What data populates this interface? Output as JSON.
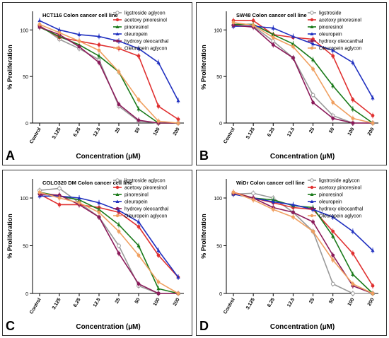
{
  "x_categories": [
    "Control",
    "3.125",
    "6.25",
    "12.5",
    "25",
    "50",
    "100",
    "200"
  ],
  "chart_data": [
    {
      "type": "line",
      "panel_label": "A",
      "title": "HCT116 Colon cancer cell line",
      "xlabel": "Concentration (µM)",
      "ylabel": "% Proliferation",
      "ylim": [
        0,
        120
      ],
      "yticks": [
        0,
        50,
        100
      ],
      "series": [
        {
          "name": "ligstroside aglycon",
          "color": "#999999",
          "marker": "circle-open",
          "values": [
            105,
            90,
            80,
            68,
            18,
            2,
            0,
            0
          ]
        },
        {
          "name": "acetoxy pinoresinol",
          "color": "#e03030",
          "marker": "circle",
          "values": [
            104,
            92,
            88,
            84,
            80,
            72,
            18,
            4
          ]
        },
        {
          "name": "pinoresinol",
          "color": "#1a7a1a",
          "marker": "triangle",
          "values": [
            103,
            93,
            84,
            72,
            55,
            15,
            0,
            0
          ]
        },
        {
          "name": "oleuropein",
          "color": "#2030c0",
          "marker": "triangle",
          "values": [
            110,
            100,
            95,
            93,
            88,
            80,
            65,
            24
          ]
        },
        {
          "name": "hydroxy oleocanthal",
          "color": "#8b1a5a",
          "marker": "circle",
          "values": [
            103,
            95,
            82,
            65,
            20,
            3,
            0,
            0
          ]
        },
        {
          "name": "Oleuropein aglycon",
          "color": "#f0a060",
          "marker": "circle",
          "values": [
            106,
            97,
            88,
            78,
            55,
            25,
            2,
            0
          ]
        }
      ]
    },
    {
      "type": "line",
      "panel_label": "B",
      "title": "SW48 Colon cancer cell line",
      "xlabel": "Concentration (µM)",
      "ylabel": "% Proliferation",
      "ylim": [
        0,
        120
      ],
      "yticks": [
        0,
        50,
        100
      ],
      "series": [
        {
          "name": "ligstroside",
          "color": "#999999",
          "marker": "circle-open",
          "values": [
            105,
            104,
            88,
            70,
            30,
            8,
            0,
            0
          ]
        },
        {
          "name": "acetoxy pinoresinol",
          "color": "#e03030",
          "marker": "circle",
          "values": [
            110,
            110,
            95,
            92,
            90,
            72,
            25,
            8
          ]
        },
        {
          "name": "pinoresinol",
          "color": "#1a7a1a",
          "marker": "triangle",
          "values": [
            106,
            106,
            95,
            85,
            68,
            40,
            15,
            0
          ]
        },
        {
          "name": "oleuropein",
          "color": "#2030c0",
          "marker": "triangle",
          "values": [
            104,
            104,
            102,
            93,
            85,
            78,
            65,
            27
          ]
        },
        {
          "name": "hydroxy oleocanthal",
          "color": "#8b1a5a",
          "marker": "circle",
          "values": [
            105,
            103,
            84,
            70,
            22,
            5,
            0,
            0
          ]
        },
        {
          "name": "Oleuropein aglycon",
          "color": "#f0a060",
          "marker": "circle",
          "values": [
            108,
            105,
            92,
            82,
            58,
            22,
            5,
            0
          ]
        }
      ]
    },
    {
      "type": "line",
      "panel_label": "C",
      "title": "COLO320 DM Colon cancer cell line",
      "xlabel": "Concentration (µM)",
      "ylabel": "% Proliferation",
      "ylim": [
        0,
        120
      ],
      "yticks": [
        0,
        50,
        100
      ],
      "series": [
        {
          "name": "ligstroside aglycon",
          "color": "#999999",
          "marker": "circle-open",
          "values": [
            108,
            110,
            95,
            80,
            50,
            8,
            0,
            0
          ]
        },
        {
          "name": "acetoxy pinoresinol",
          "color": "#e03030",
          "marker": "circle",
          "values": [
            104,
            93,
            93,
            90,
            85,
            70,
            40,
            17
          ]
        },
        {
          "name": "pinoresinol",
          "color": "#1a7a1a",
          "marker": "triangle",
          "values": [
            106,
            102,
            98,
            88,
            72,
            50,
            5,
            0
          ]
        },
        {
          "name": "oleuropein",
          "color": "#2030c0",
          "marker": "triangle",
          "values": [
            102,
            102,
            100,
            95,
            87,
            75,
            45,
            17
          ]
        },
        {
          "name": "hydroxy oleocanthal",
          "color": "#8b1a5a",
          "marker": "circle",
          "values": [
            104,
            103,
            93,
            80,
            42,
            10,
            0,
            0
          ]
        },
        {
          "name": "Oleuropein aglycon",
          "color": "#f0a060",
          "marker": "circle",
          "values": [
            106,
            100,
            95,
            85,
            65,
            40,
            12,
            0
          ]
        }
      ]
    },
    {
      "type": "line",
      "panel_label": "D",
      "title": "WiDr Colon cancer cell line",
      "xlabel": "Concentration (µM)",
      "ylabel": "% Proliferation",
      "ylim": [
        0,
        120
      ],
      "yticks": [
        0,
        50,
        100
      ],
      "series": [
        {
          "name": "ligstroside aglycon",
          "color": "#999999",
          "marker": "circle-open",
          "values": [
            104,
            105,
            100,
            85,
            65,
            10,
            0,
            0
          ]
        },
        {
          "name": "acetoxy pinoresinol",
          "color": "#e03030",
          "marker": "circle",
          "values": [
            106,
            100,
            95,
            90,
            88,
            65,
            42,
            8
          ]
        },
        {
          "name": "pinoresinol",
          "color": "#1a7a1a",
          "marker": "triangle",
          "values": [
            105,
            100,
            98,
            92,
            90,
            60,
            20,
            0
          ]
        },
        {
          "name": "oleuropein",
          "color": "#2030c0",
          "marker": "triangle",
          "values": [
            104,
            100,
            96,
            93,
            88,
            80,
            65,
            45
          ]
        },
        {
          "name": "hydroxy oleocanthal",
          "color": "#8b1a5a",
          "marker": "circle",
          "values": [
            105,
            100,
            90,
            85,
            75,
            40,
            8,
            0
          ]
        },
        {
          "name": "Oleuropein aglycon",
          "color": "#f0a060",
          "marker": "circle",
          "values": [
            106,
            98,
            88,
            80,
            65,
            35,
            10,
            0
          ]
        }
      ]
    }
  ]
}
